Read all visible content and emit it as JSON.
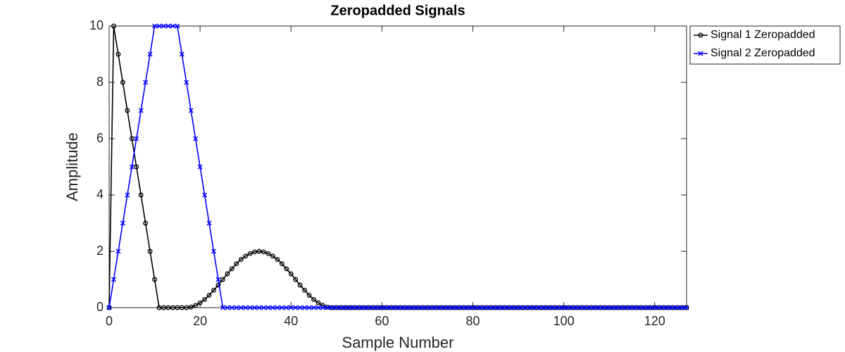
{
  "chart_data": {
    "type": "line",
    "title": "Zeropadded Signals",
    "x_label": "Sample Number",
    "y_label": "Amplitude",
    "x": [
      0,
      1,
      2,
      3,
      4,
      5,
      6,
      7,
      8,
      9,
      10,
      11,
      12,
      13,
      14,
      15,
      16,
      17,
      18,
      19,
      20,
      21,
      22,
      23,
      24,
      25,
      26,
      27,
      28,
      29,
      30,
      31,
      32,
      33,
      34,
      35,
      36,
      37,
      38,
      39,
      40,
      41,
      42,
      43,
      44,
      45,
      46,
      47,
      48,
      49,
      50,
      51,
      52,
      53,
      54,
      55,
      56,
      57,
      58,
      59,
      60,
      61,
      62,
      63,
      64,
      65,
      66,
      67,
      68,
      69,
      70,
      71,
      72,
      73,
      74,
      75,
      76,
      77,
      78,
      79,
      80,
      81,
      82,
      83,
      84,
      85,
      86,
      87,
      88,
      89,
      90,
      91,
      92,
      93,
      94,
      95,
      96,
      97,
      98,
      99,
      100,
      101,
      102,
      103,
      104,
      105,
      106,
      107,
      108,
      109,
      110,
      111,
      112,
      113,
      114,
      115,
      116,
      117,
      118,
      119,
      120,
      121,
      122,
      123,
      124,
      125,
      126,
      127
    ],
    "series": [
      {
        "name": "Signal 1 Zeropadded",
        "color": "#000000",
        "marker": "o",
        "values": [
          0,
          10,
          9,
          8,
          7,
          6,
          5,
          4,
          3,
          2,
          1,
          0,
          0,
          0,
          0,
          0,
          0,
          0,
          0.02,
          0.08,
          0.17,
          0.29,
          0.44,
          0.62,
          0.8,
          1,
          1.2,
          1.38,
          1.56,
          1.71,
          1.83,
          1.92,
          1.98,
          2,
          1.98,
          1.92,
          1.83,
          1.71,
          1.56,
          1.38,
          1.2,
          1,
          0.8,
          0.62,
          0.44,
          0.29,
          0.17,
          0.08,
          0.02,
          0,
          0,
          0,
          0,
          0,
          0,
          0,
          0,
          0,
          0,
          0,
          0,
          0,
          0,
          0,
          0,
          0,
          0,
          0,
          0,
          0,
          0,
          0,
          0,
          0,
          0,
          0,
          0,
          0,
          0,
          0,
          0,
          0,
          0,
          0,
          0,
          0,
          0,
          0,
          0,
          0,
          0,
          0,
          0,
          0,
          0,
          0,
          0,
          0,
          0,
          0,
          0,
          0,
          0,
          0,
          0,
          0,
          0,
          0,
          0,
          0,
          0,
          0,
          0,
          0,
          0,
          0,
          0,
          0,
          0,
          0,
          0,
          0,
          0,
          0,
          0,
          0,
          0,
          0
        ]
      },
      {
        "name": "Signal 2 Zeropadded",
        "color": "#0000ff",
        "marker": "x",
        "values": [
          0,
          1,
          2,
          3,
          4,
          5,
          6,
          7,
          8,
          9,
          10,
          10,
          10,
          10,
          10,
          10,
          9,
          8,
          7,
          6,
          5,
          4,
          3,
          2,
          1,
          0,
          0,
          0,
          0,
          0,
          0,
          0,
          0,
          0,
          0,
          0,
          0,
          0,
          0,
          0,
          0,
          0,
          0,
          0,
          0,
          0,
          0,
          0,
          0,
          0,
          0,
          0,
          0,
          0,
          0,
          0,
          0,
          0,
          0,
          0,
          0,
          0,
          0,
          0,
          0,
          0,
          0,
          0,
          0,
          0,
          0,
          0,
          0,
          0,
          0,
          0,
          0,
          0,
          0,
          0,
          0,
          0,
          0,
          0,
          0,
          0,
          0,
          0,
          0,
          0,
          0,
          0,
          0,
          0,
          0,
          0,
          0,
          0,
          0,
          0,
          0,
          0,
          0,
          0,
          0,
          0,
          0,
          0,
          0,
          0,
          0,
          0,
          0,
          0,
          0,
          0,
          0,
          0,
          0,
          0,
          0,
          0,
          0,
          0,
          0,
          0,
          0,
          0
        ]
      }
    ],
    "xlim": [
      0,
      127
    ],
    "xticks": [
      0,
      20,
      40,
      60,
      80,
      100,
      120
    ],
    "ylim": [
      0,
      10
    ],
    "yticks": [
      0,
      2,
      4,
      6,
      8,
      10
    ],
    "grid": false,
    "legend": "outside-top-right"
  }
}
